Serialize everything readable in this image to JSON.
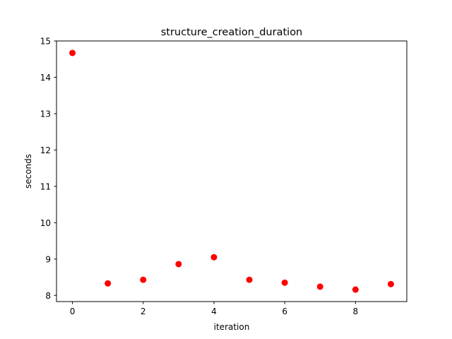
{
  "chart_data": {
    "type": "scatter",
    "title": "structure_creation_duration",
    "xlabel": "iteration",
    "ylabel": "seconds",
    "xlim": [
      -0.45,
      9.45
    ],
    "ylim": [
      7.83,
      15.0
    ],
    "xticks": [
      0,
      2,
      4,
      6,
      8
    ],
    "yticks": [
      8,
      9,
      10,
      11,
      12,
      13,
      14,
      15
    ],
    "marker_color": "#ff0000",
    "grid": false,
    "series": [
      {
        "name": "structure_creation_duration",
        "x": [
          0,
          1,
          2,
          3,
          4,
          5,
          6,
          7,
          8,
          9
        ],
        "y": [
          14.67,
          8.33,
          8.43,
          8.86,
          9.05,
          8.43,
          8.35,
          8.24,
          8.16,
          8.31
        ]
      }
    ]
  }
}
